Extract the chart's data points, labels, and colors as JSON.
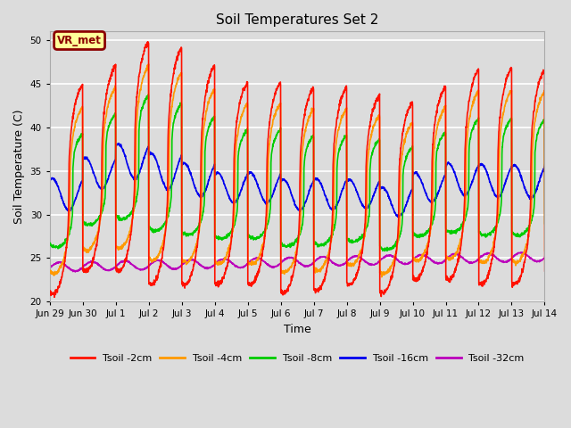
{
  "title": "Soil Temperatures Set 2",
  "xlabel": "Time",
  "ylabel": "Soil Temperature (C)",
  "ylim": [
    20,
    51
  ],
  "yticks": [
    20,
    25,
    30,
    35,
    40,
    45,
    50
  ],
  "background_color": "#dcdcdc",
  "axes_background": "#dcdcdc",
  "grid_color": "white",
  "annotation_text": "VR_met",
  "annotation_color": "#8b0000",
  "annotation_bg": "#ffff99",
  "series": {
    "Tsoil -2cm": {
      "color": "#ff1100",
      "lw": 1.2
    },
    "Tsoil -4cm": {
      "color": "#ff9900",
      "lw": 1.2
    },
    "Tsoil -8cm": {
      "color": "#00cc00",
      "lw": 1.2
    },
    "Tsoil -16cm": {
      "color": "#0000ee",
      "lw": 1.2
    },
    "Tsoil -32cm": {
      "color": "#bb00bb",
      "lw": 1.2
    }
  },
  "xtick_labels": [
    "Jun 29",
    "Jun 30",
    "Jul 1",
    "Jul 2",
    "Jul 3",
    "Jul 4",
    "Jul 5",
    "Jul 6",
    "Jul 7",
    "Jul 8",
    "Jul 9",
    "Jul 10",
    "Jul 11",
    "Jul 12",
    "Jul 13",
    "Jul 14"
  ],
  "day_peaks_2cm": [
    45.0,
    47.2,
    50.0,
    49.3,
    47.2,
    45.3,
    45.3,
    44.7,
    44.7,
    43.8,
    43.0,
    44.8,
    46.8,
    47.0,
    46.8,
    46.0
  ],
  "day_troughs_2cm": [
    20.8,
    23.5,
    23.5,
    22.0,
    22.0,
    22.0,
    22.0,
    21.0,
    21.2,
    22.0,
    21.0,
    22.5,
    22.5,
    22.0,
    22.0,
    23.5
  ]
}
